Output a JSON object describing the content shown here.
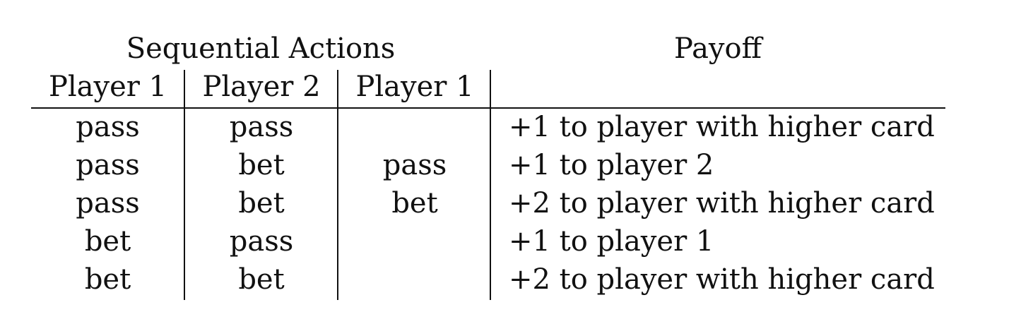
{
  "table": {
    "group_headers": {
      "sequential_actions": "Sequential Actions",
      "payoff": "Payoff"
    },
    "column_headers": [
      "Player 1",
      "Player 2",
      "Player 1"
    ],
    "rows": [
      {
        "p1": "pass",
        "p2": "pass",
        "p1b": "",
        "payoff": "+1 to player with higher card"
      },
      {
        "p1": "pass",
        "p2": "bet",
        "p1b": "pass",
        "payoff": "+1 to player 2"
      },
      {
        "p1": "pass",
        "p2": "bet",
        "p1b": "bet",
        "payoff": "+2 to player with higher card"
      },
      {
        "p1": "bet",
        "p2": "pass",
        "p1b": "",
        "payoff": "+1 to player 1"
      },
      {
        "p1": "bet",
        "p2": "bet",
        "p1b": "",
        "payoff": "+2 to player with higher card"
      }
    ]
  }
}
